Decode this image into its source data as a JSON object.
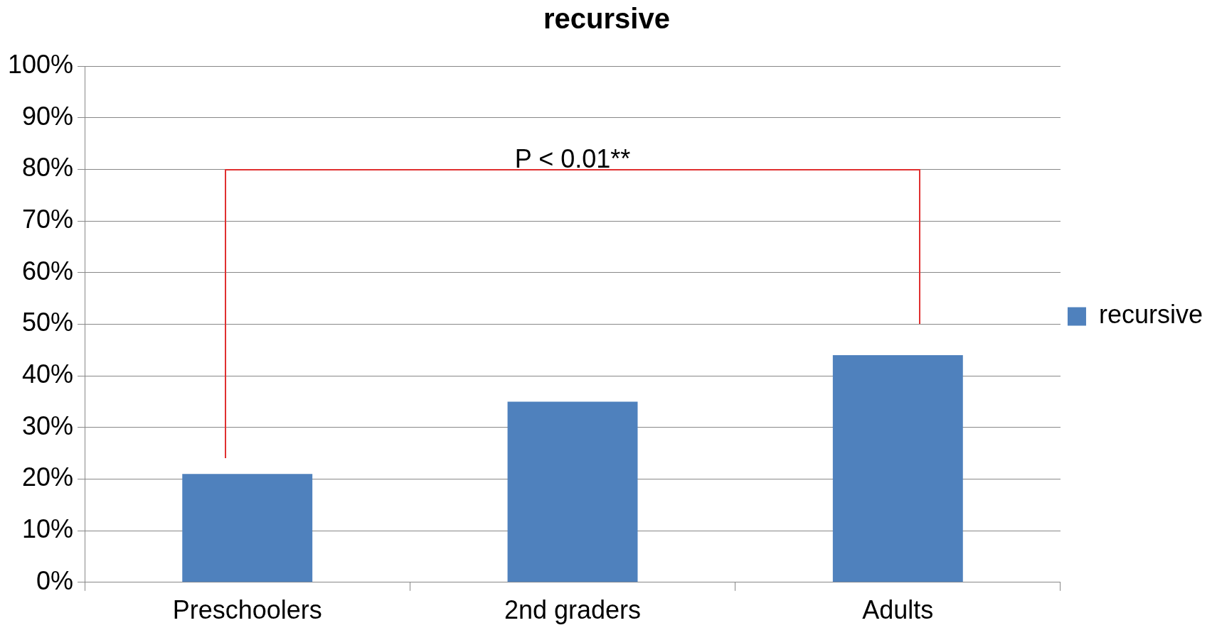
{
  "chart_data": {
    "type": "bar",
    "title": "recursive",
    "categories": [
      "Preschoolers",
      "2nd graders",
      "Adults"
    ],
    "series": [
      {
        "name": "recursive",
        "color": "#4f81bd",
        "values": [
          21,
          35,
          44
        ]
      }
    ],
    "ylim": [
      0,
      100
    ],
    "yticks": [
      {
        "value": 0,
        "label": "0%"
      },
      {
        "value": 10,
        "label": "10%"
      },
      {
        "value": 20,
        "label": "20%"
      },
      {
        "value": 30,
        "label": "30%"
      },
      {
        "value": 40,
        "label": "40%"
      },
      {
        "value": 50,
        "label": "50%"
      },
      {
        "value": 60,
        "label": "60%"
      },
      {
        "value": 70,
        "label": "70%"
      },
      {
        "value": 80,
        "label": "80%"
      },
      {
        "value": 90,
        "label": "90%"
      },
      {
        "value": 100,
        "label": "100%"
      }
    ],
    "grid": "y",
    "legend": "right",
    "annotations": [
      "P < 0.01**"
    ]
  }
}
